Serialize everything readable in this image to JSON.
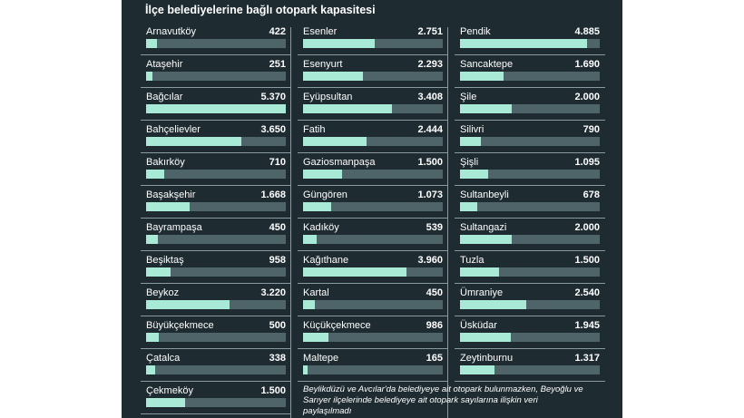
{
  "chart_data": {
    "type": "bar",
    "orientation": "horizontal",
    "title": "İlçe belediyelerine bağlı otopark kapasitesi",
    "xlim": [
      0,
      5370
    ],
    "colors": {
      "panel": "#1e2b31",
      "track": "#4f6468",
      "fill": "#a9ead6",
      "text": "#ffffff",
      "divider": "#8a9a9f"
    },
    "columns": [
      [
        {
          "name": "Arnavutköy",
          "value": 422,
          "display": "422"
        },
        {
          "name": "Ataşehir",
          "value": 251,
          "display": "251"
        },
        {
          "name": "Bağcılar",
          "value": 5370,
          "display": "5.370"
        },
        {
          "name": "Bahçelievler",
          "value": 3650,
          "display": "3.650"
        },
        {
          "name": "Bakırköy",
          "value": 710,
          "display": "710"
        },
        {
          "name": "Başakşehir",
          "value": 1668,
          "display": "1.668"
        },
        {
          "name": "Bayrampaşa",
          "value": 450,
          "display": "450"
        },
        {
          "name": "Beşiktaş",
          "value": 958,
          "display": "958"
        },
        {
          "name": "Beykoz",
          "value": 3220,
          "display": "3.220"
        },
        {
          "name": "Büyükçekmece",
          "value": 500,
          "display": "500"
        },
        {
          "name": "Çatalca",
          "value": 338,
          "display": "338"
        },
        {
          "name": "Çekmeköy",
          "value": 1500,
          "display": "1.500"
        }
      ],
      [
        {
          "name": "Esenler",
          "value": 2751,
          "display": "2.751"
        },
        {
          "name": "Esenyurt",
          "value": 2293,
          "display": "2.293"
        },
        {
          "name": "Eyüpsultan",
          "value": 3408,
          "display": "3.408"
        },
        {
          "name": "Fatih",
          "value": 2444,
          "display": "2.444"
        },
        {
          "name": "Gaziosmanpaşa",
          "value": 1500,
          "display": "1.500"
        },
        {
          "name": "Güngören",
          "value": 1073,
          "display": "1.073"
        },
        {
          "name": "Kadıköy",
          "value": 539,
          "display": "539"
        },
        {
          "name": "Kağıthane",
          "value": 3960,
          "display": "3.960"
        },
        {
          "name": "Kartal",
          "value": 450,
          "display": "450"
        },
        {
          "name": "Küçükçekmece",
          "value": 986,
          "display": "986"
        },
        {
          "name": "Maltepe",
          "value": 165,
          "display": "165"
        }
      ],
      [
        {
          "name": "Pendik",
          "value": 4885,
          "display": "4.885"
        },
        {
          "name": "Sancaktepe",
          "value": 1690,
          "display": "1.690"
        },
        {
          "name": "Şile",
          "value": 2000,
          "display": "2.000"
        },
        {
          "name": "Silivri",
          "value": 790,
          "display": "790"
        },
        {
          "name": "Şişli",
          "value": 1095,
          "display": "1.095"
        },
        {
          "name": "Sultanbeyli",
          "value": 678,
          "display": "678"
        },
        {
          "name": "Sultangazi",
          "value": 2000,
          "display": "2.000"
        },
        {
          "name": "Tuzla",
          "value": 1500,
          "display": "1.500"
        },
        {
          "name": "Ümraniye",
          "value": 2540,
          "display": "2.540"
        },
        {
          "name": "Üsküdar",
          "value": 1945,
          "display": "1.945"
        },
        {
          "name": "Zeytinburnu",
          "value": 1317,
          "display": "1.317"
        }
      ]
    ],
    "note": "Beylikdüzü ve Avcılar'da belediyeye ait otopark bulunmazken, Beyoğlu ve Sarıyer ilçelerinde belediyeye ait otopark sayılarına ilişkin veri paylaşılmadı"
  }
}
